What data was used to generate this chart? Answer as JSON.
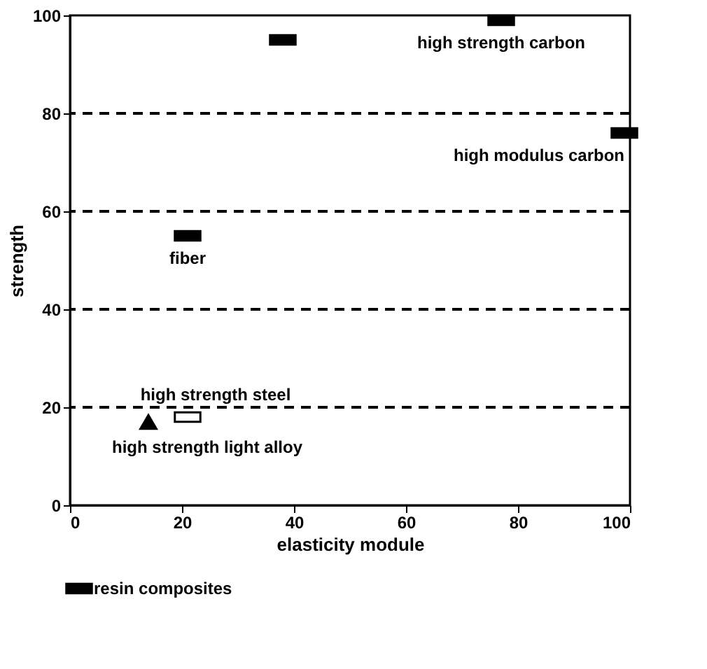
{
  "chart_data": {
    "type": "scatter",
    "xlabel": "elasticity module",
    "ylabel": "strength",
    "xlim": [
      0,
      100
    ],
    "ylim": [
      0,
      100
    ],
    "xticks": [
      0,
      20,
      40,
      60,
      80,
      100
    ],
    "yticks": [
      0,
      20,
      40,
      60,
      80,
      100
    ],
    "series": [
      {
        "name": "resin composites",
        "color": "#000000",
        "marker": "square",
        "x": [
          38,
          77,
          99,
          21
        ],
        "values": [
          95,
          99,
          76,
          55
        ]
      },
      {
        "color": "#ffffff",
        "marker": "square",
        "x": [
          21
        ],
        "values": [
          18
        ]
      },
      {
        "color": "#000000",
        "marker": "triangle",
        "x": [
          14
        ],
        "values": [
          17
        ]
      }
    ],
    "annotations": [
      {
        "text": "high strength carbon",
        "x": 77,
        "y": 99
      },
      {
        "text": "high modulus carbon",
        "x": 99,
        "y": 76
      },
      {
        "text": "fiber",
        "x": 21,
        "y": 55
      },
      {
        "text": "high strength steel",
        "x": 21,
        "y": 18
      },
      {
        "text": "high strength light alloy",
        "x": 14,
        "y": 17
      }
    ],
    "ref_lines": [
      {
        "axis": "y",
        "value": 20,
        "line_style": "dashed"
      },
      {
        "axis": "y",
        "value": 40,
        "line_style": "dashed"
      },
      {
        "axis": "y",
        "value": 60,
        "line_style": "dashed"
      },
      {
        "axis": "y",
        "value": 80,
        "line_style": "dashed"
      }
    ],
    "grid": false,
    "legend": "bottom"
  }
}
